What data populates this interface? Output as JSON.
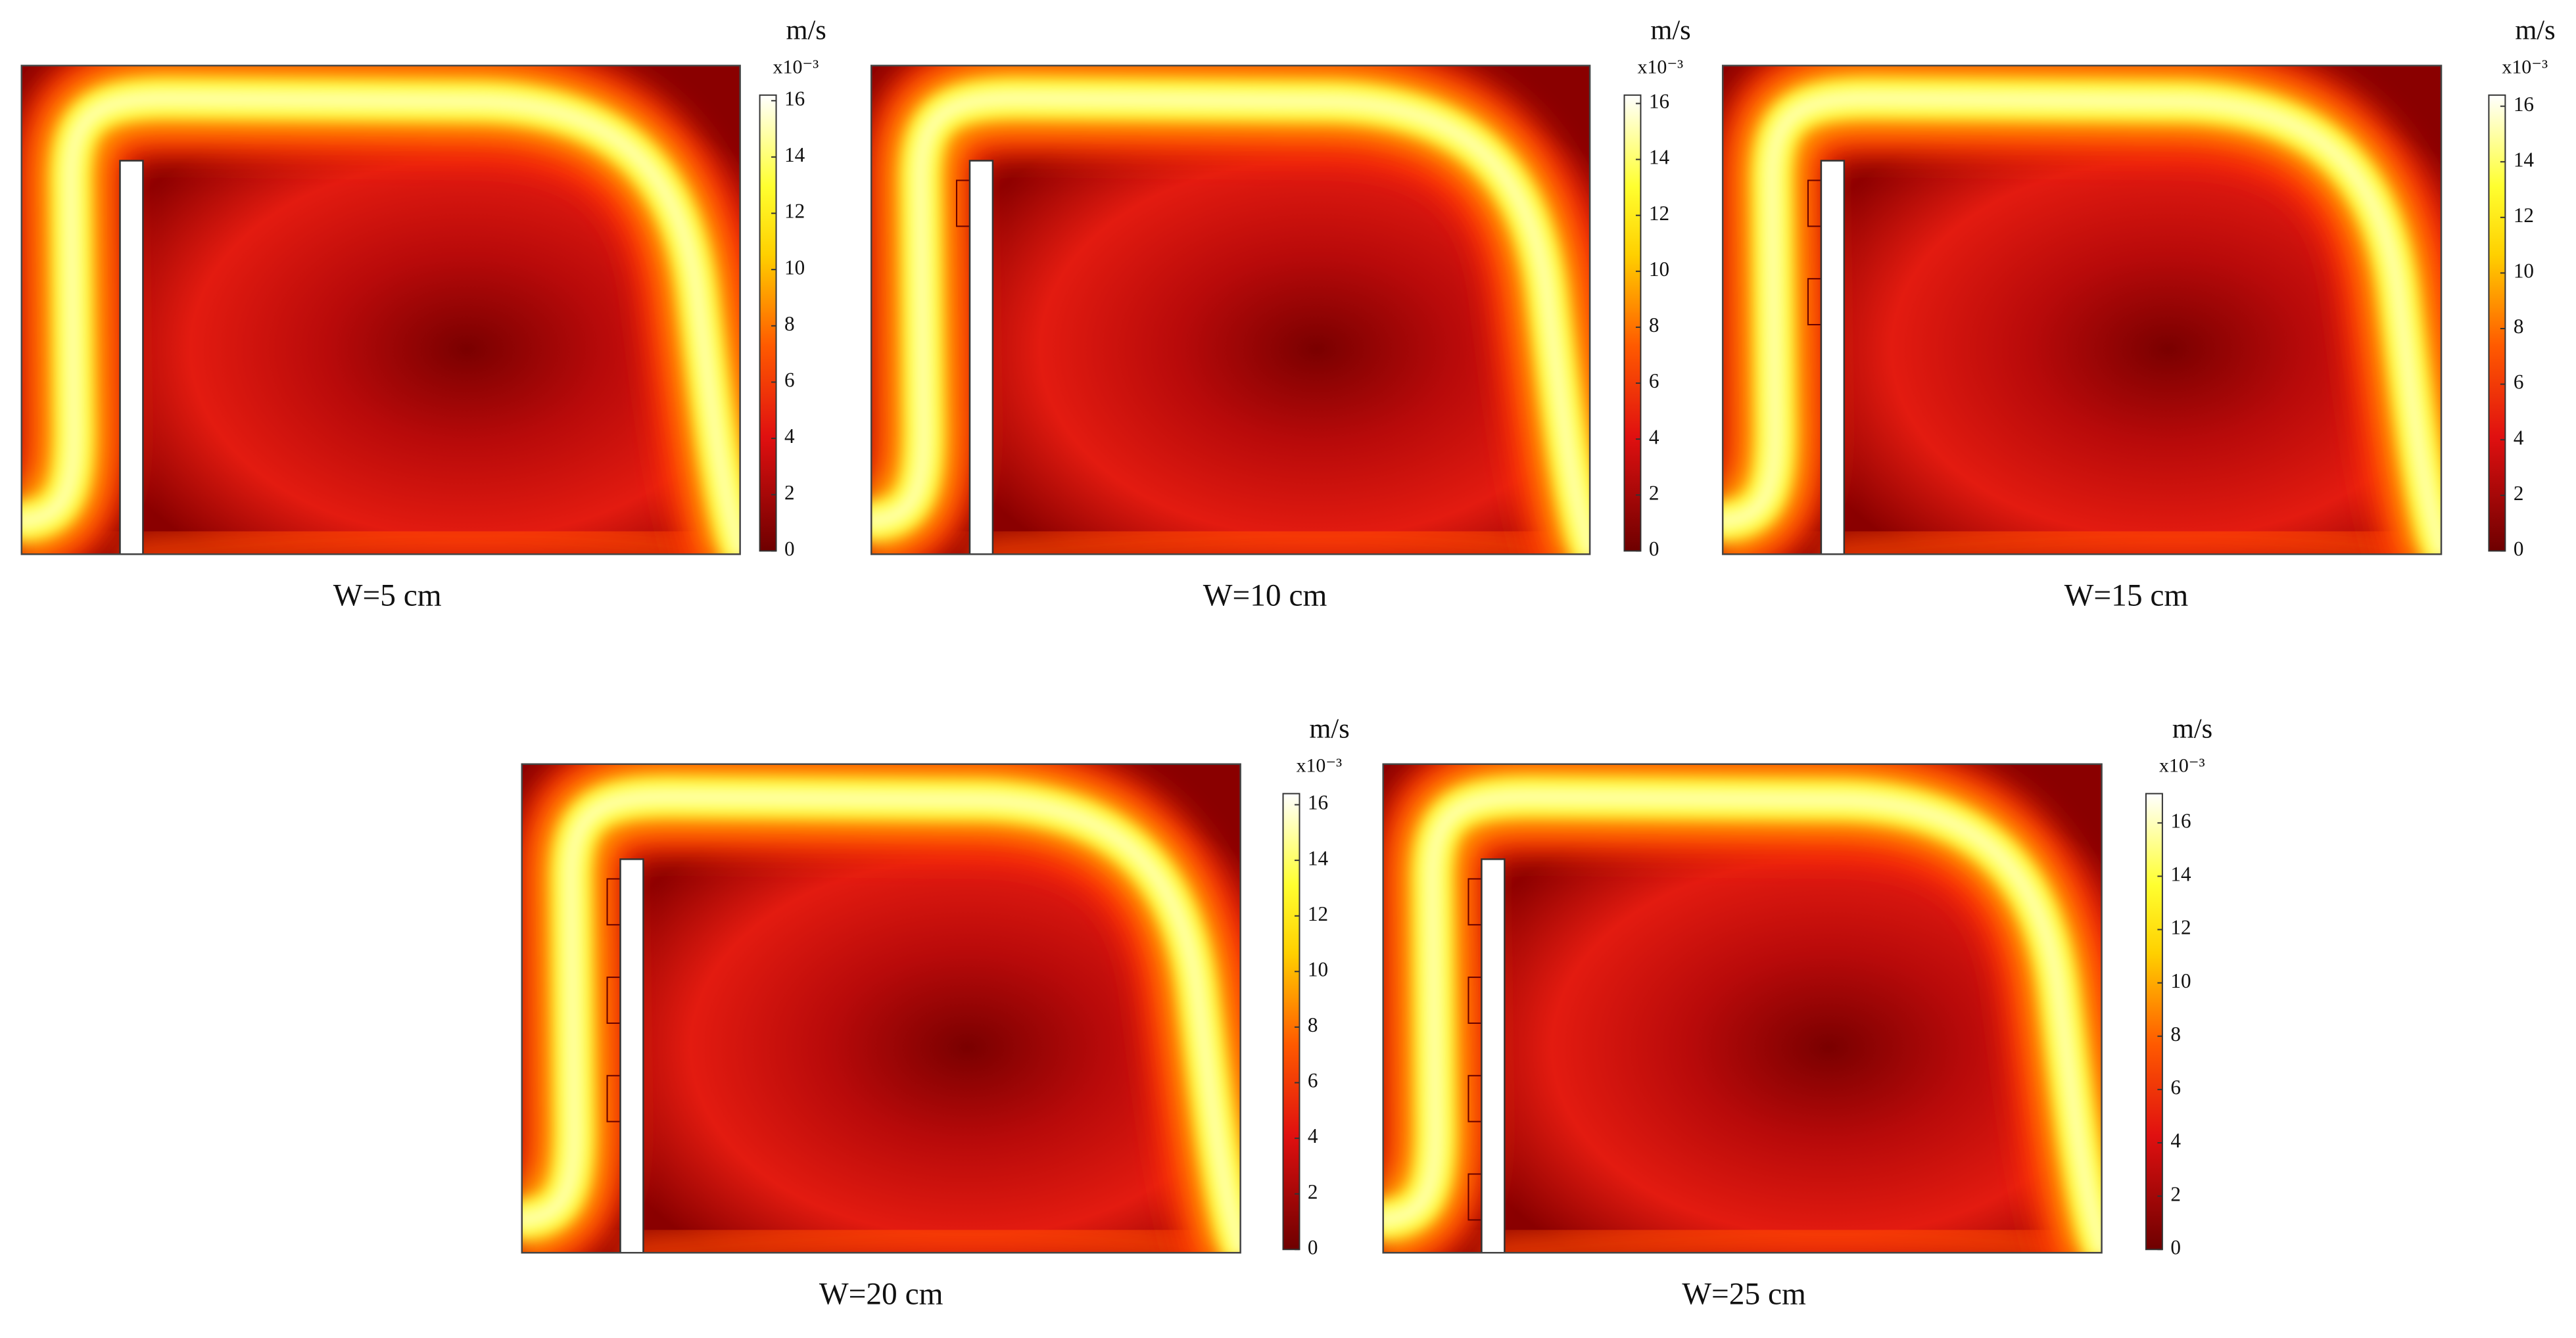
{
  "chart_data": [
    {
      "type": "field",
      "unit": "m/s",
      "scale": "x10⁻³",
      "caption": "W=5 cm",
      "clim": [
        0,
        16.2
      ],
      "cticks": [
        0,
        2,
        4,
        6,
        8,
        10,
        12,
        14,
        16
      ]
    },
    {
      "type": "field",
      "unit": "m/s",
      "scale": "x10⁻³",
      "caption": "W=10 cm",
      "clim": [
        0,
        16.3
      ],
      "cticks": [
        0,
        2,
        4,
        6,
        8,
        10,
        12,
        14,
        16
      ]
    },
    {
      "type": "field",
      "unit": "m/s",
      "scale": "x10⁻³",
      "caption": "W=15 cm",
      "clim": [
        0,
        16.4
      ],
      "cticks": [
        0,
        2,
        4,
        6,
        8,
        10,
        12,
        14,
        16
      ]
    },
    {
      "type": "field",
      "unit": "m/s",
      "scale": "x10⁻³",
      "caption": "W=20 cm",
      "clim": [
        0,
        16.4
      ],
      "cticks": [
        0,
        2,
        4,
        6,
        8,
        10,
        12,
        14,
        16
      ]
    },
    {
      "type": "field",
      "unit": "m/s",
      "scale": "x10⁻³",
      "caption": "W=25 cm",
      "clim": [
        0,
        17.1
      ],
      "cticks": [
        0,
        2,
        4,
        6,
        8,
        10,
        12,
        14,
        16
      ]
    }
  ]
}
